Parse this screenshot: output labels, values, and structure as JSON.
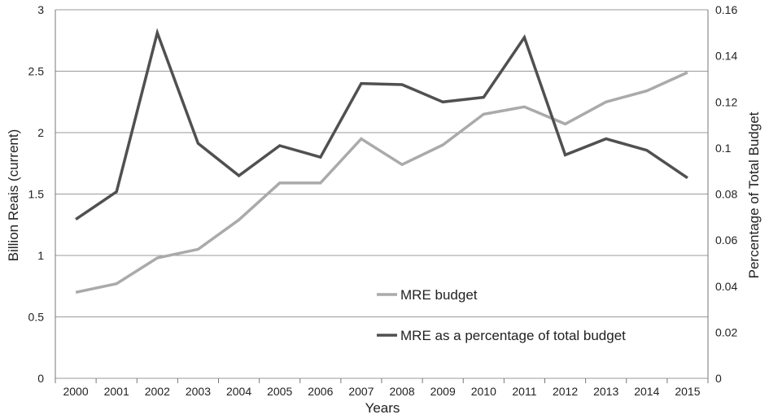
{
  "chart_data": {
    "type": "line",
    "x": [
      "2000",
      "2001",
      "2002",
      "2003",
      "2004",
      "2005",
      "2006",
      "2007",
      "2008",
      "2009",
      "2010",
      "2011",
      "2012",
      "2013",
      "2014",
      "2015"
    ],
    "xlabel": "Years",
    "ylabel": "Billion Reais (current)",
    "y2label": "Percentage of Total Budget",
    "ylim": [
      0,
      3
    ],
    "y2lim": [
      0,
      0.16
    ],
    "yticks": [
      "0",
      "0.5",
      "1",
      "1.5",
      "2",
      "2.5",
      "3"
    ],
    "y2ticks": [
      "0",
      "0.02",
      "0.04",
      "0.06",
      "0.08",
      "0.1",
      "0.12",
      "0.14",
      "0.16"
    ],
    "grid": true,
    "legend_position": "center",
    "series": [
      {
        "name": "MRE budget",
        "axis": "left",
        "color": "#aaaaaa",
        "values": [
          0.7,
          0.77,
          0.98,
          1.05,
          1.29,
          1.59,
          1.59,
          1.95,
          1.74,
          1.9,
          2.15,
          2.21,
          2.07,
          2.25,
          2.34,
          2.49
        ]
      },
      {
        "name": "MRE as a percentage of total budget",
        "axis": "right",
        "color": "#505050",
        "values": [
          0.069,
          0.081,
          0.15,
          0.102,
          0.088,
          0.101,
          0.096,
          0.128,
          0.1275,
          0.12,
          0.122,
          0.148,
          0.097,
          0.104,
          0.099,
          0.087
        ]
      }
    ]
  }
}
